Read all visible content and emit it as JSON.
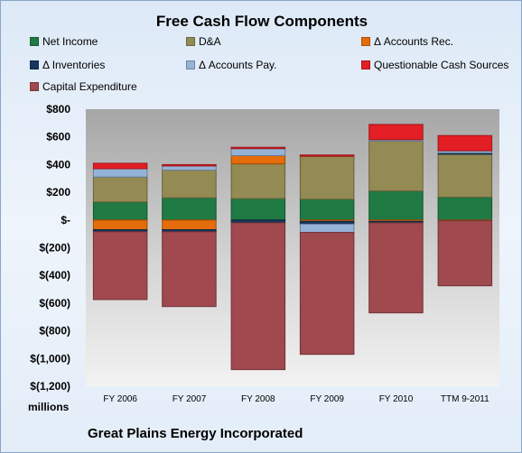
{
  "chart_data": {
    "type": "bar",
    "stacked": true,
    "title": "Free Cash Flow Components",
    "ylabel": "millions",
    "xlabel": "",
    "footer": "Great Plains Energy Incorporated",
    "categories": [
      "FY 2006",
      "FY 2007",
      "FY 2008",
      "FY 2009",
      "FY 2010",
      "TTM 9-2011"
    ],
    "ylim": [
      -1200,
      800
    ],
    "yticks": [
      800,
      600,
      400,
      200,
      0,
      -200,
      -400,
      -600,
      -800,
      -1000,
      -1200
    ],
    "ytick_labels": [
      "$800",
      "$600",
      "$400",
      "$200",
      "$-",
      "$(200)",
      "$(400)",
      "$(600)",
      "$(800)",
      "$(1,000)",
      "$(1,200)"
    ],
    "grid": false,
    "legend_position": "top",
    "series": [
      {
        "name": "Net Income",
        "color": "#1f7a43",
        "values": [
          130,
          160,
          155,
          150,
          210,
          165
        ]
      },
      {
        "name": "D&A",
        "color": "#948a54",
        "values": [
          180,
          200,
          250,
          310,
          360,
          310
        ]
      },
      {
        "name": "Δ Accounts Rec.",
        "color": "#e46c0a",
        "values": [
          -70,
          -70,
          60,
          -10,
          -10,
          -5
        ]
      },
      {
        "name": "Δ Inventories",
        "color": "#17375e",
        "values": [
          -15,
          -15,
          -20,
          -20,
          -10,
          10
        ]
      },
      {
        "name": "Δ Accounts Pay.",
        "color": "#95b3d7",
        "values": [
          60,
          30,
          50,
          -60,
          10,
          15
        ]
      },
      {
        "name": "Questionable Cash Sources",
        "color": "#e31e24",
        "values": [
          40,
          10,
          10,
          10,
          110,
          110
        ]
      },
      {
        "name": "Capital Expenditure",
        "color": "#a0494e",
        "values": [
          -490,
          -540,
          -1060,
          -880,
          -650,
          -470
        ]
      }
    ]
  }
}
